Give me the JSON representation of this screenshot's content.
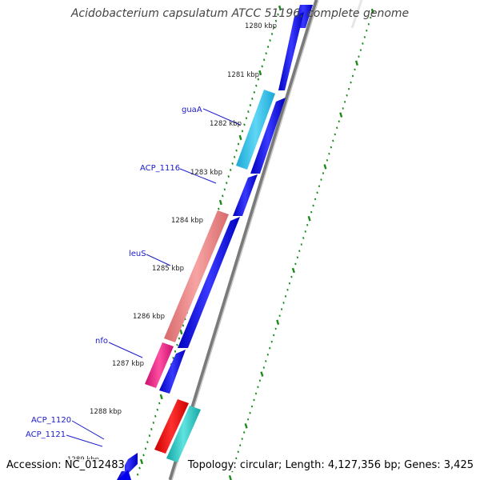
{
  "title": "Acidobacterium capsulatum ATCC 51196, complete genome",
  "footer": {
    "accession": "Accession: NC_012483",
    "summary": "Topology: circular; Length: 4,127,356 bp; Genes: 3,425"
  },
  "colors": {
    "background": "#ffffff",
    "backbone": "#8c8c8c",
    "tick_mark": "#1a8a1a",
    "gene_forward": "#0000ee",
    "label_text": "#1a1acc"
  },
  "scale_ticks": [
    {
      "label": "1280 kbp",
      "kbp": 1280
    },
    {
      "label": "1281 kbp",
      "kbp": 1281
    },
    {
      "label": "1282 kbp",
      "kbp": 1282
    },
    {
      "label": "1283 kbp",
      "kbp": 1283
    },
    {
      "label": "1284 kbp",
      "kbp": 1284
    },
    {
      "label": "1285 kbp",
      "kbp": 1285
    },
    {
      "label": "1286 kbp",
      "kbp": 1286
    },
    {
      "label": "1287 kbp",
      "kbp": 1287
    },
    {
      "label": "1288 kbp",
      "kbp": 1288
    },
    {
      "label": "1289 kbp",
      "kbp": 1289
    }
  ],
  "gene_labels": [
    {
      "name": "guaA",
      "color": "#1a1acc"
    },
    {
      "name": "ACP_1116",
      "color": "#1a1acc"
    },
    {
      "name": "leuS",
      "color": "#1a1acc"
    },
    {
      "name": "nfo",
      "color": "#1a1acc"
    },
    {
      "name": "ACP_1120",
      "color": "#1a1acc"
    },
    {
      "name": "ACP_1121",
      "color": "#1a1acc"
    }
  ],
  "features": [
    {
      "name": "guaA",
      "color": "#2bc0ec",
      "track": "outer"
    },
    {
      "name": "leuS",
      "color": "#ea7f80",
      "track": "outer"
    },
    {
      "name": "nfo",
      "color": "#e8157f",
      "track": "outer"
    },
    {
      "name": "red-feature",
      "color": "#ee0000",
      "track": "outer"
    },
    {
      "name": "teal-feature",
      "color": "#1fc7c3",
      "track": "middle"
    },
    {
      "name": "blue-1",
      "color": "#0000ee",
      "track": "inner"
    },
    {
      "name": "blue-2",
      "color": "#0000ee",
      "track": "inner"
    },
    {
      "name": "blue-3",
      "color": "#0000ee",
      "track": "inner"
    },
    {
      "name": "blue-4",
      "color": "#0000ee",
      "track": "inner"
    },
    {
      "name": "blue-5",
      "color": "#0000ee",
      "track": "inner"
    },
    {
      "name": "blue-6",
      "color": "#0000ee",
      "track": "inner"
    },
    {
      "name": "blue-7",
      "color": "#0000ee",
      "track": "inner"
    }
  ]
}
